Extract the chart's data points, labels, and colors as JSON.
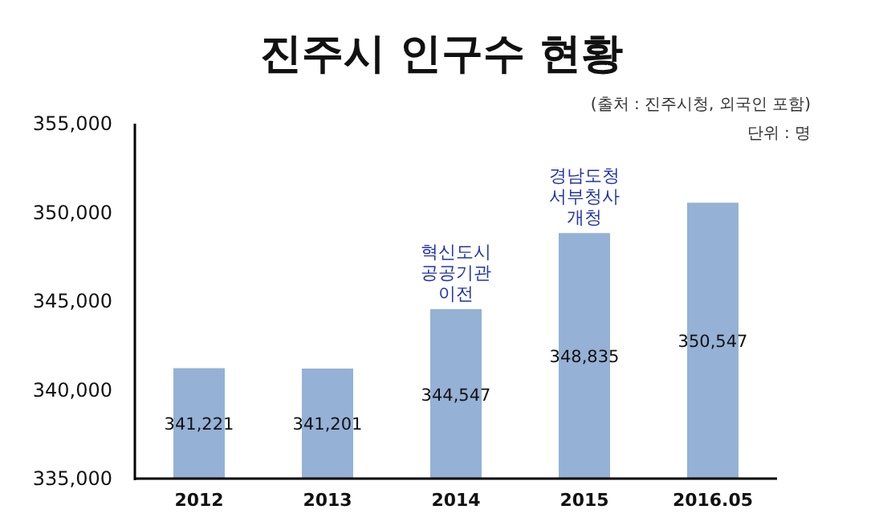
{
  "chart_data": {
    "type": "bar",
    "title": "진주시 인구수 현황",
    "categories": [
      "2012",
      "2013",
      "2014",
      "2015",
      "2016.05"
    ],
    "values": [
      341221,
      341201,
      344547,
      348835,
      350547
    ],
    "color": "#95b1d6",
    "ylim": [
      335000,
      355000
    ],
    "yticks": [
      {
        "value": 335000,
        "label": "335,000"
      },
      {
        "value": 340000,
        "label": "340,000"
      },
      {
        "value": 345000,
        "label": "345,000"
      },
      {
        "value": 350000,
        "label": "350,000"
      },
      {
        "value": 355000,
        "label": "355,000"
      }
    ],
    "value_labels": [
      "341,221",
      "341,201",
      "344,547",
      "348,835",
      "350,547"
    ],
    "annotations": [
      "(출처 : 진주시청, 외국인 포함)",
      "단위 : 명",
      {
        "text": "혁신도시 공공기관 이전",
        "x": "2014",
        "y": 344547
      },
      {
        "text": "경남도청 서부청사 개청",
        "x": "2015",
        "y": 348835
      }
    ],
    "grid": false
  }
}
